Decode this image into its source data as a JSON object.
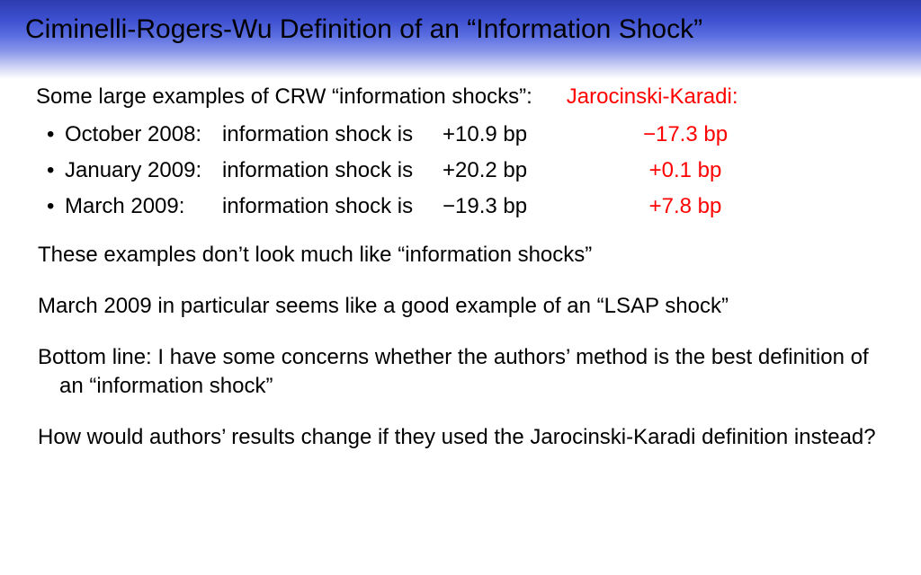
{
  "title": "Ciminelli-Rogers-Wu Definition of an “Information Shock”",
  "intro": {
    "text": "Some large examples of CRW “information shocks”:",
    "jk_label": "Jarocinski-Karadi:"
  },
  "rows": [
    {
      "date": "October 2008:",
      "shock_text": "information shock is",
      "value": "+10.9 bp",
      "jk": "−17.3 bp"
    },
    {
      "date": "January 2009:",
      "shock_text": "information shock is",
      "value": "+20.2 bp",
      "jk": "+0.1 bp"
    },
    {
      "date": "March 2009:",
      "shock_text": "information shock is",
      "value": "−19.3 bp",
      "jk": "+7.8 bp"
    }
  ],
  "paragraphs": {
    "p1": "These examples don’t look much like “information shocks”",
    "p2": "March 2009 in particular seems like a good example of an “LSAP shock”",
    "p3": "Bottom line:  I have some concerns whether the authors’ method is the best definition of an “information shock”",
    "p4": "How would authors’ results change if they used the Jarocinski-Karadi definition instead?"
  },
  "style": {
    "accent_color": "#ff0000",
    "text_color": "#000000",
    "background_color": "#ffffff",
    "header_gradient_from": "#2d3db0",
    "header_gradient_to": "#ffffff",
    "title_fontsize": 30,
    "body_fontsize": 24
  }
}
